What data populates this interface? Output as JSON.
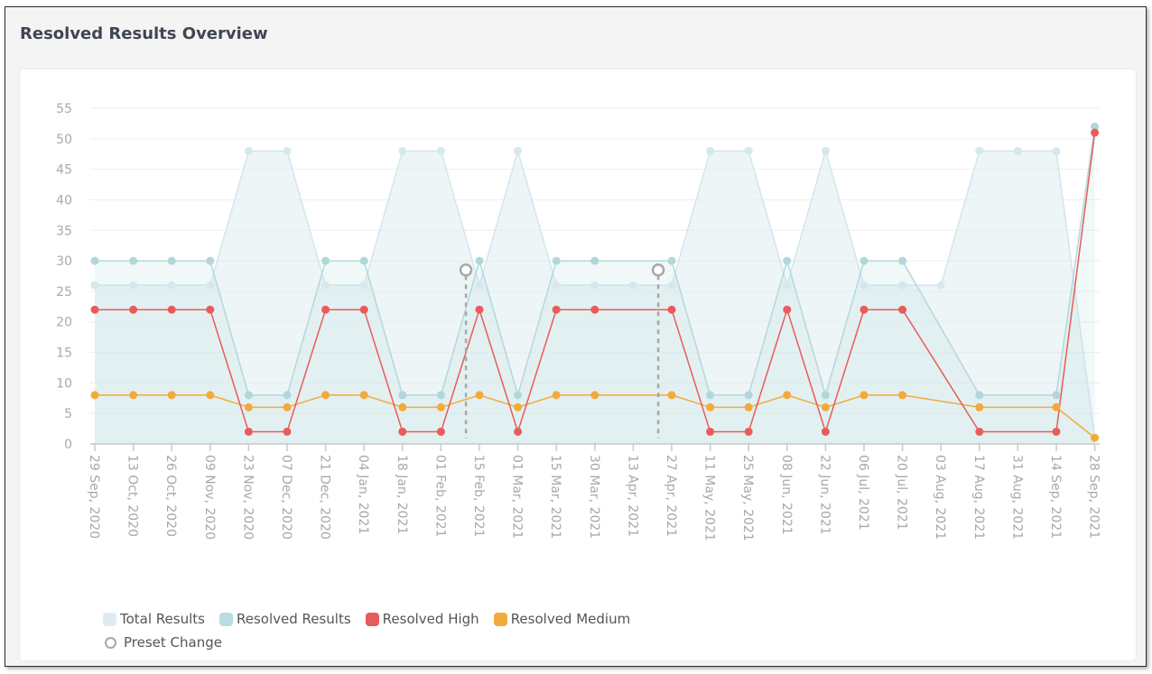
{
  "page": {
    "title": "Resolved Results Overview"
  },
  "legend": {
    "total": "Total Results",
    "resolved": "Resolved Results",
    "high": "Resolved High",
    "medium": "Resolved Medium",
    "preset": "Preset Change"
  },
  "colors": {
    "total": "#deecf1",
    "resolved": "#b9dde0",
    "high": "#e95b5b",
    "medium": "#f3aa3c",
    "preset": "#a8a8a8"
  },
  "chart_data": {
    "type": "line",
    "title": "",
    "xlabel": "",
    "ylabel": "",
    "ylim": [
      0,
      55
    ],
    "yticks": [
      0,
      5,
      10,
      15,
      20,
      25,
      30,
      35,
      40,
      45,
      50,
      55
    ],
    "grid": true,
    "legend_position": "bottom-left",
    "categories": [
      "29 Sep, 2020",
      "13 Oct, 2020",
      "26 Oct, 2020",
      "09 Nov, 2020",
      "23 Nov, 2020",
      "07 Dec, 2020",
      "21 Dec, 2020",
      "04 Jan, 2021",
      "18 Jan, 2021",
      "01 Feb, 2021",
      "15 Feb, 2021",
      "01 Mar, 2021",
      "15 Mar, 2021",
      "30 Mar, 2021",
      "13 Apr, 2021",
      "27 Apr, 2021",
      "11 May, 2021",
      "25 May, 2021",
      "08 Jun, 2021",
      "22 Jun, 2021",
      "06 Jul, 2021",
      "20 Jul, 2021",
      "03 Aug, 2021",
      "17 Aug, 2021",
      "31 Aug, 2021",
      "14 Sep, 2021",
      "28 Sep, 2021"
    ],
    "series": [
      {
        "name": "Total Results",
        "kind": "area",
        "values": [
          26,
          26,
          26,
          26,
          48,
          48,
          26,
          26,
          48,
          48,
          26,
          48,
          26,
          26,
          26,
          26,
          48,
          48,
          26,
          48,
          26,
          26,
          26,
          48,
          48,
          48,
          1
        ]
      },
      {
        "name": "Resolved Results",
        "kind": "area",
        "values": [
          30,
          30,
          30,
          30,
          8,
          8,
          30,
          30,
          8,
          8,
          30,
          8,
          30,
          30,
          null,
          30,
          8,
          8,
          30,
          8,
          30,
          30,
          null,
          8,
          null,
          8,
          52
        ]
      },
      {
        "name": "Resolved High",
        "kind": "line",
        "values": [
          22,
          22,
          22,
          22,
          2,
          2,
          22,
          22,
          2,
          2,
          22,
          2,
          22,
          22,
          null,
          22,
          2,
          2,
          22,
          2,
          22,
          22,
          null,
          2,
          null,
          2,
          51
        ]
      },
      {
        "name": "Resolved Medium",
        "kind": "line",
        "values": [
          8,
          8,
          8,
          8,
          6,
          6,
          8,
          8,
          6,
          6,
          8,
          6,
          8,
          8,
          null,
          8,
          6,
          6,
          8,
          6,
          8,
          8,
          null,
          6,
          null,
          6,
          1
        ]
      }
    ],
    "preset_changes": [
      {
        "after_index": 9,
        "value": 28.5
      },
      {
        "after_index": 14,
        "value": 28.5
      }
    ]
  }
}
